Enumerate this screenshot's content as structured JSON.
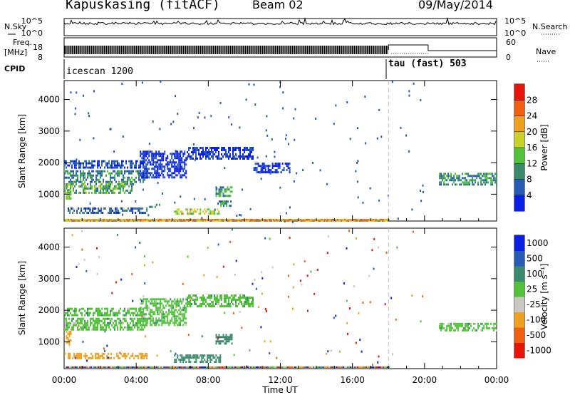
{
  "header": {
    "station": "Kapuskasing (fitACF)",
    "beam": "Beam 02",
    "date": "09/May/2014"
  },
  "labels": {
    "nsky": "N.Sky",
    "nsearch": "N.Search",
    "freq_line1": "Freq.",
    "freq_line2": "[MHz]",
    "nave": "Nave",
    "cpid": "CPID",
    "ylabel": "Slant Range [km]",
    "xlabel": "Time UT",
    "power_label": "Power [dB]",
    "velocity_label": "Velocity [m s⁻¹]"
  },
  "noise_axis": {
    "left_ticks": [
      "10^5",
      "10^0"
    ],
    "right_ticks": [
      "10^5",
      "10^0"
    ]
  },
  "freq_axis": {
    "left_ticks": [
      "18",
      "8"
    ],
    "right_ticks": [
      "60",
      "0"
    ]
  },
  "cpid_segments": [
    {
      "start": 0.0,
      "end": 18.0,
      "label": "icescan 1200"
    },
    {
      "start": 18.0,
      "end": 24.0,
      "label": "tau (fast) 503"
    }
  ],
  "colors": {
    "power": [
      "#0a1ee6",
      "#2a5ab8",
      "#3c8a6e",
      "#52c23a",
      "#c8d02a",
      "#f0a020",
      "#f06010",
      "#e8140a"
    ],
    "velocity": [
      "#e8140a",
      "#f06010",
      "#f0a020",
      "#c8c8c0",
      "#52c23a",
      "#3c8a6e",
      "#2a5ab8",
      "#0a1ee6"
    ]
  },
  "chart_data": [
    {
      "type": "heatmap",
      "panel": "power",
      "x_unit": "hours UT",
      "xlim": [
        0,
        24
      ],
      "ylim": [
        150,
        4600
      ],
      "x_ticks": [
        "00:00",
        "04:00",
        "08:00",
        "12:00",
        "16:00",
        "20:00",
        "00:00"
      ],
      "y_ticks": [
        1000,
        2000,
        3000,
        4000
      ],
      "colorbar": {
        "label": "Power [dB]",
        "ticks": [
          4,
          8,
          12,
          16,
          20,
          24,
          28
        ],
        "range": [
          0,
          32
        ]
      },
      "regions": [
        {
          "x": [
            0.0,
            4.6
          ],
          "y": [
            1420,
            1760
          ],
          "value": 9
        },
        {
          "x": [
            0.0,
            4.4
          ],
          "y": [
            1850,
            2080
          ],
          "value": 5
        },
        {
          "x": [
            0.0,
            3.8
          ],
          "y": [
            1060,
            1350
          ],
          "value": 12
        },
        {
          "x": [
            0.1,
            0.4
          ],
          "y": [
            850,
            1300
          ],
          "value": 15
        },
        {
          "x": [
            0.2,
            4.6
          ],
          "y": [
            430,
            580
          ],
          "value": 7
        },
        {
          "x": [
            4.7,
            5.3
          ],
          "y": [
            600,
            700
          ],
          "value": 10
        },
        {
          "x": [
            6.1,
            8.7
          ],
          "y": [
            350,
            550
          ],
          "value": 16
        },
        {
          "x": [
            8.4,
            9.3
          ],
          "y": [
            950,
            1250
          ],
          "value": 11
        },
        {
          "x": [
            8.5,
            9.3
          ],
          "y": [
            650,
            800
          ],
          "value": 10
        },
        {
          "x": [
            4.2,
            6.8
          ],
          "y": [
            1550,
            2380
          ],
          "value": 3
        },
        {
          "x": [
            6.8,
            10.5
          ],
          "y": [
            2150,
            2500
          ],
          "value": 3
        },
        {
          "x": [
            10.5,
            12.5
          ],
          "y": [
            1700,
            2000
          ],
          "value": 3
        },
        {
          "x": [
            20.8,
            24.0
          ],
          "y": [
            1300,
            1680
          ],
          "value": 10
        },
        {
          "x": [
            0.0,
            18.0
          ],
          "y": [
            150,
            200
          ],
          "value": 20
        }
      ]
    },
    {
      "type": "heatmap",
      "panel": "velocity",
      "x_unit": "hours UT",
      "xlim": [
        0,
        24
      ],
      "ylim": [
        150,
        4600
      ],
      "x_ticks": [
        "00:00",
        "04:00",
        "08:00",
        "12:00",
        "16:00",
        "20:00",
        "00:00"
      ],
      "y_ticks": [
        1000,
        2000,
        3000,
        4000
      ],
      "colorbar": {
        "label": "Velocity [m s⁻¹]",
        "ticks": [
          "-1000",
          "-500",
          "-100",
          "-25",
          "25",
          "100",
          "500",
          "1000"
        ]
      },
      "regions": [
        {
          "x": [
            0.0,
            4.6
          ],
          "y": [
            1380,
            1760
          ],
          "value": 0
        },
        {
          "x": [
            0.0,
            4.4
          ],
          "y": [
            1850,
            2080
          ],
          "value": 0
        },
        {
          "x": [
            0.1,
            0.4
          ],
          "y": [
            900,
            1350
          ],
          "value": -400
        },
        {
          "x": [
            0.2,
            4.6
          ],
          "y": [
            450,
            650
          ],
          "value": -150
        },
        {
          "x": [
            6.1,
            8.7
          ],
          "y": [
            350,
            600
          ],
          "value": 60
        },
        {
          "x": [
            8.4,
            9.3
          ],
          "y": [
            950,
            1250
          ],
          "value": 60
        },
        {
          "x": [
            4.2,
            6.8
          ],
          "y": [
            1550,
            2380
          ],
          "value": 0
        },
        {
          "x": [
            6.8,
            10.5
          ],
          "y": [
            2150,
            2500
          ],
          "value": 0
        },
        {
          "x": [
            20.8,
            24.0
          ],
          "y": [
            1380,
            1600
          ],
          "value": 0
        }
      ]
    }
  ]
}
